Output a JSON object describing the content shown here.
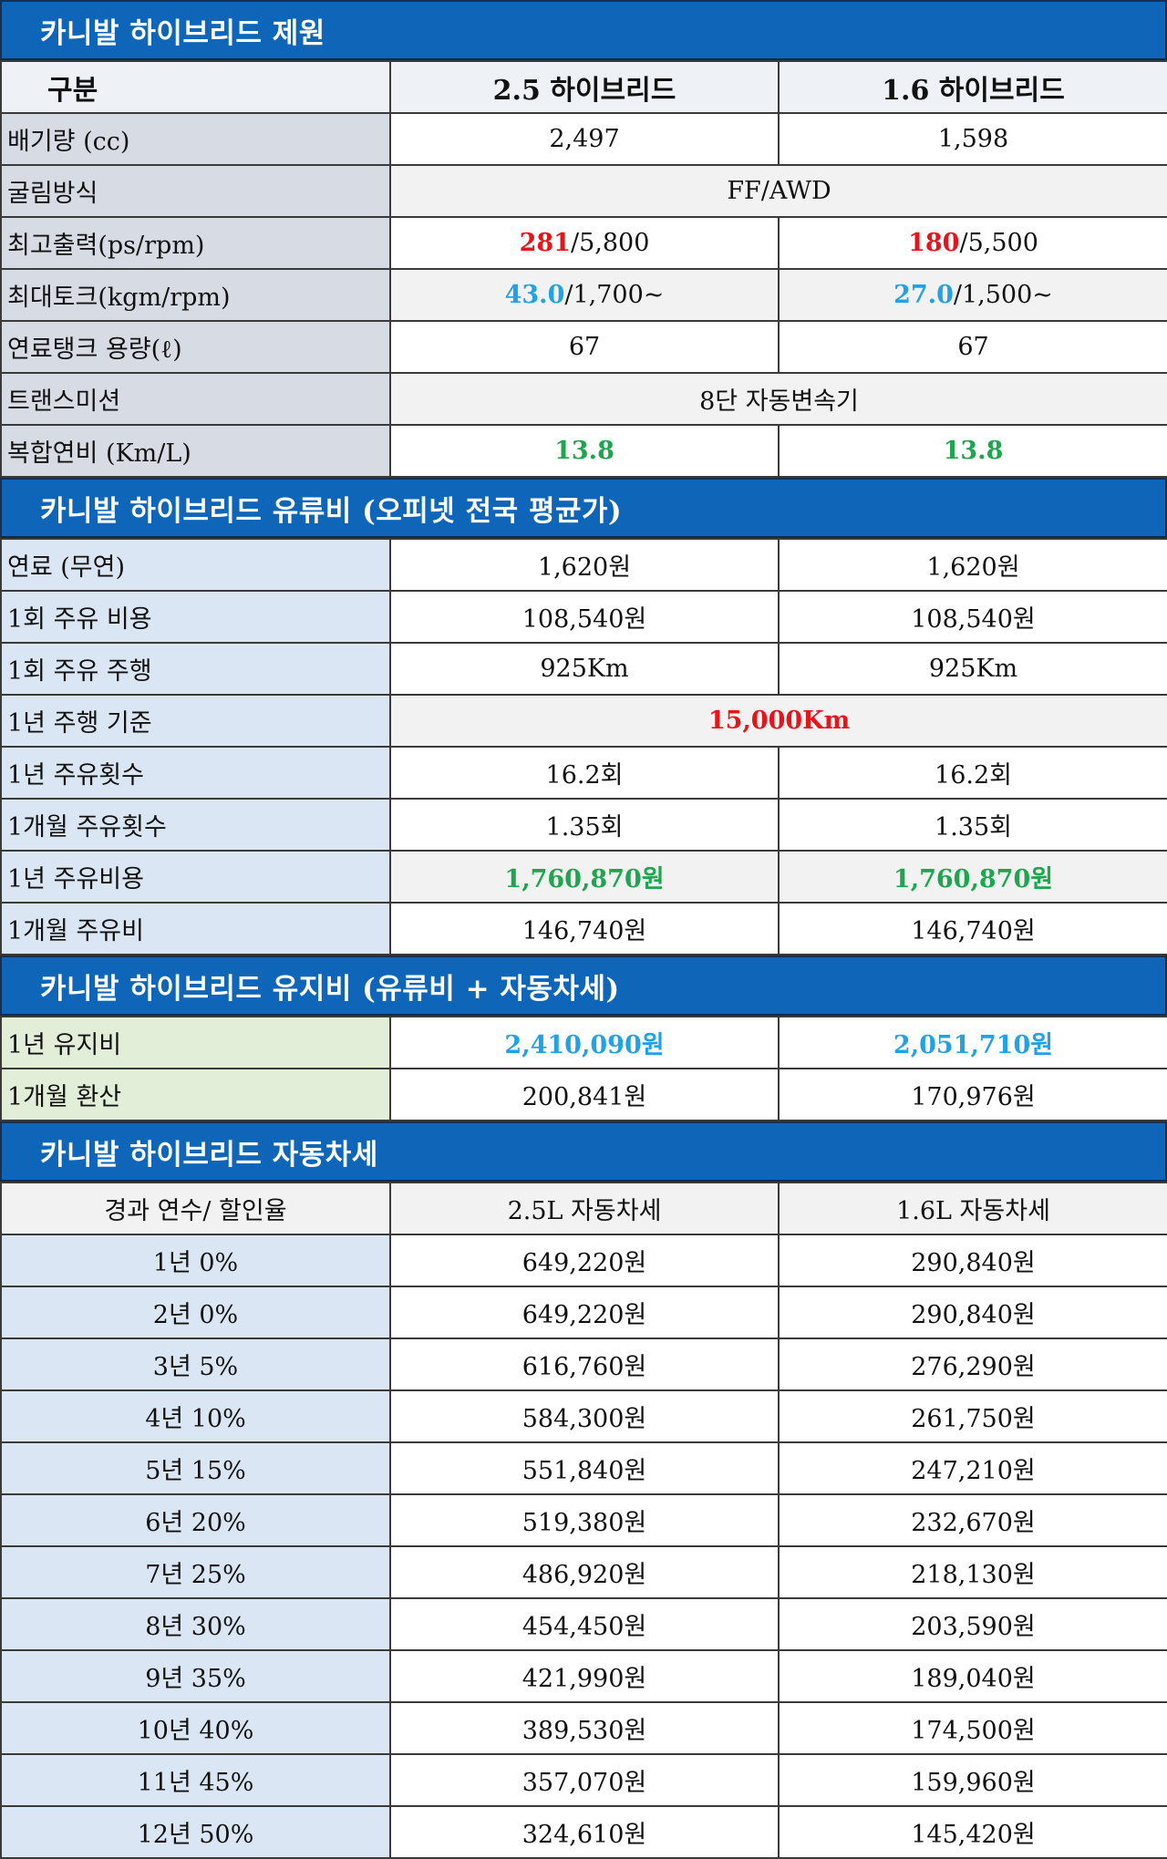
{
  "spec": {
    "title": "카니발 하이브리드 제원",
    "header": [
      "구분",
      "2.5 하이브리드",
      "1.6 하이브리드"
    ],
    "displacement": {
      "label": "배기량 (cc)",
      "a": "2,497",
      "b": "1,598"
    },
    "drive": {
      "label": "굴림방식",
      "v": "FF/AWD"
    },
    "power": {
      "label": "최고출력(ps/rpm)",
      "a_hi": "281",
      "a_rest": "/5,800",
      "b_hi": "180",
      "b_rest": "/5,500"
    },
    "torque": {
      "label": "최대토크(kgm/rpm)",
      "a_hi": "43.0",
      "a_rest": "/1,700~",
      "b_hi": "27.0",
      "b_rest": "/1,500~"
    },
    "tank": {
      "label": "연료탱크 용량(ℓ)",
      "a": "67",
      "b": "67"
    },
    "trans": {
      "label": "트랜스미션",
      "v": "8단 자동변속기"
    },
    "mileage": {
      "label": "복합연비 (Km/L)",
      "a": "13.8",
      "b": "13.8"
    }
  },
  "fuel": {
    "title": "카니발 하이브리드 유류비 (오피넷 전국 평균가)",
    "price": {
      "label": "연료 (무연)",
      "a": "1,620원",
      "b": "1,620원"
    },
    "fill_cost": {
      "label": "1회 주유 비용",
      "a": "108,540원",
      "b": "108,540원"
    },
    "fill_range": {
      "label": "1회 주유 주행",
      "a": "925Km",
      "b": "925Km"
    },
    "basis": {
      "label": "1년 주행 기준",
      "v": "15,000Km"
    },
    "fills_year": {
      "label": "1년 주유횟수",
      "a": "16.2회",
      "b": "16.2회"
    },
    "fills_month": {
      "label": "1개월 주유횟수",
      "a": "1.35회",
      "b": "1.35회"
    },
    "cost_year": {
      "label": "1년 주유비용",
      "a": "1,760,870원",
      "b": "1,760,870원"
    },
    "cost_month": {
      "label": "1개월 주유비",
      "a": "146,740원",
      "b": "146,740원"
    }
  },
  "upkeep": {
    "title": "카니발 하이브리드 유지비 (유류비 + 자동차세)",
    "year": {
      "label": "1년 유지비",
      "a": "2,410,090원",
      "b": "2,051,710원"
    },
    "month": {
      "label": "1개월 환산",
      "a": "200,841원",
      "b": "170,976원"
    }
  },
  "tax": {
    "title": "카니발 하이브리드 자동차세",
    "header": [
      "경과 연수/ 할인율",
      "2.5L 자동차세",
      "1.6L 자동차세"
    ],
    "rows": [
      [
        "1년 0%",
        "649,220원",
        "290,840원"
      ],
      [
        "2년 0%",
        "649,220원",
        "290,840원"
      ],
      [
        "3년 5%",
        "616,760원",
        "276,290원"
      ],
      [
        "4년 10%",
        "584,300원",
        "261,750원"
      ],
      [
        "5년 15%",
        "551,840원",
        "247,210원"
      ],
      [
        "6년 20%",
        "519,380원",
        "232,670원"
      ],
      [
        "7년 25%",
        "486,920원",
        "218,130원"
      ],
      [
        "8년 30%",
        "454,450원",
        "203,590원"
      ],
      [
        "9년 35%",
        "421,990원",
        "189,040원"
      ],
      [
        "10년 40%",
        "389,530원",
        "174,500원"
      ],
      [
        "11년 45%",
        "357,070원",
        "159,960원"
      ],
      [
        "12년 50%",
        "324,610원",
        "145,420원"
      ]
    ]
  },
  "colors": {
    "band": "#0f66b8",
    "red": "#e8141b",
    "sky": "#22a2e6",
    "green": "#1ea64e"
  }
}
